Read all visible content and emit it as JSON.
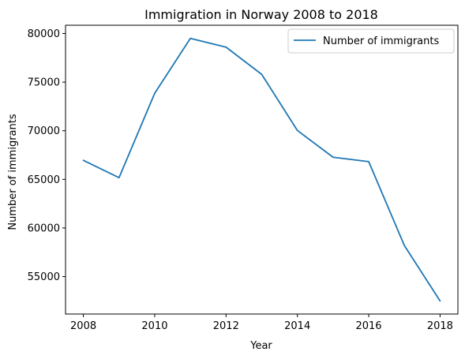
{
  "chart_data": {
    "type": "line",
    "title": "Immigration in Norway 2008 to 2018",
    "xlabel": "Year",
    "ylabel": "Number of immigrants",
    "x": [
      2008,
      2009,
      2010,
      2011,
      2012,
      2013,
      2014,
      2015,
      2016,
      2017,
      2018
    ],
    "series": [
      {
        "name": "Number of immigrants",
        "color": "#1f77b4",
        "values": [
          66960,
          65170,
          73850,
          79500,
          78600,
          75800,
          70030,
          67280,
          66820,
          58190,
          52500
        ]
      }
    ],
    "xlim": [
      2007.5,
      2018.5
    ],
    "ylim": [
      51150,
      80850
    ],
    "xticks": [
      2008,
      2010,
      2012,
      2014,
      2016,
      2018
    ],
    "yticks": [
      55000,
      60000,
      65000,
      70000,
      75000,
      80000
    ],
    "xtick_labels": [
      "2008",
      "2010",
      "2012",
      "2014",
      "2016",
      "2018"
    ],
    "ytick_labels": [
      "55000",
      "60000",
      "65000",
      "70000",
      "75000",
      "80000"
    ],
    "grid": false,
    "legend_position": "top-right"
  }
}
